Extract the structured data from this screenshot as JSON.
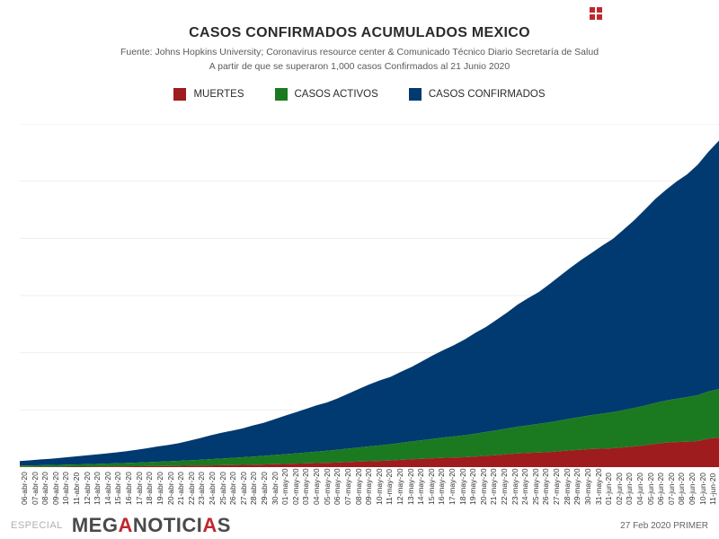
{
  "chart": {
    "type": "stacked-area",
    "title": "CASOS CONFIRMADOS ACUMULADOS MEXICO",
    "subtitle1": "Fuente: Johns Hopkins University; Coronavirus resource center & Comunicado Técnico Diario Secretaría de Salud",
    "subtitle2": "A partir de que se superaron 1,000 casos Confirmados al 21 Junio 2020",
    "title_fontsize": 16,
    "subtitle_fontsize": 10.5,
    "legend_fontsize": 11.5,
    "xaxis_fontsize": 8.5,
    "background_color": "#ffffff",
    "grid_color": "#eeeeee",
    "ylim": [
      0,
      185000
    ],
    "grid_steps": 6,
    "legend": [
      {
        "label": "MUERTES",
        "color": "#9e1b1e"
      },
      {
        "label": "CASOS ACTIVOS",
        "color": "#1b7a1f"
      },
      {
        "label": "CASOS CONFIRMADOS",
        "color": "#003a70"
      }
    ],
    "dates": [
      "06-abr-20",
      "07-abr-20",
      "08-abr-20",
      "09-abr-20",
      "10-abr-20",
      "11-abr-20",
      "12-abr-20",
      "13-abr-20",
      "14-abr-20",
      "15-abr-20",
      "16-abr-20",
      "17-abr-20",
      "18-abr-20",
      "19-abr-20",
      "20-abr-20",
      "21-abr-20",
      "22-abr-20",
      "23-abr-20",
      "24-abr-20",
      "25-abr-20",
      "26-abr-20",
      "27-abr-20",
      "28-abr-20",
      "29-abr-20",
      "30-abr-20",
      "01-may-20",
      "02-may-20",
      "03-may-20",
      "04-may-20",
      "05-may-20",
      "06-may-20",
      "07-may-20",
      "08-may-20",
      "09-may-20",
      "10-may-20",
      "11-may-20",
      "12-may-20",
      "13-may-20",
      "14-may-20",
      "15-may-20",
      "16-may-20",
      "17-may-20",
      "18-may-20",
      "19-may-20",
      "20-may-20",
      "21-may-20",
      "22-may-20",
      "23-may-20",
      "24-may-20",
      "25-may-20",
      "26-may-20",
      "27-may-20",
      "28-may-20",
      "29-may-20",
      "30-may-20",
      "31-may-20",
      "01-jun-20",
      "02-jun-20",
      "03-jun-20",
      "04-jun-20",
      "05-jun-20",
      "06-jun-20",
      "07-jun-20",
      "08-jun-20",
      "09-jun-20",
      "10-jun-20",
      "11-jun-20"
    ],
    "series": {
      "muertes": [
        120,
        140,
        160,
        180,
        210,
        240,
        270,
        300,
        340,
        380,
        420,
        470,
        520,
        570,
        630,
        690,
        760,
        830,
        910,
        1000,
        1100,
        1200,
        1300,
        1420,
        1560,
        1700,
        1850,
        2000,
        2150,
        2310,
        2510,
        2700,
        2960,
        3160,
        3350,
        3570,
        3930,
        4220,
        4480,
        4770,
        5050,
        5180,
        5330,
        5670,
        6090,
        6500,
        6990,
        7390,
        7630,
        7890,
        8130,
        8600,
        9040,
        9410,
        9780,
        9930,
        10170,
        10640,
        11130,
        11730,
        12550,
        13170,
        13510,
        13700,
        14050,
        15360,
        15940
      ],
      "activos": [
        700,
        780,
        860,
        950,
        1050,
        1150,
        1260,
        1380,
        1510,
        1650,
        1800,
        1960,
        2130,
        2310,
        2500,
        2700,
        2910,
        3130,
        3360,
        3600,
        3850,
        4110,
        4380,
        4660,
        4950,
        5250,
        5560,
        5880,
        6210,
        6550,
        6900,
        7260,
        7630,
        8010,
        8400,
        8800,
        9210,
        9630,
        10060,
        10500,
        10950,
        11410,
        11880,
        12360,
        12850,
        13350,
        13860,
        14380,
        14910,
        15450,
        16000,
        16560,
        17130,
        17710,
        18300,
        18900,
        19510,
        20130,
        20760,
        21400,
        22050,
        22710,
        23380,
        24060,
        24750,
        25450,
        26160
      ],
      "confirmados": [
        2440,
        2790,
        3180,
        3440,
        3840,
        4220,
        4660,
        5010,
        5400,
        5850,
        6300,
        6880,
        7500,
        8260,
        8770,
        9500,
        10540,
        11630,
        12870,
        13840,
        14680,
        15530,
        16750,
        17800,
        19220,
        20740,
        22090,
        23470,
        24910,
        26020,
        27630,
        29620,
        31520,
        33460,
        35020,
        36330,
        38320,
        40190,
        42600,
        45030,
        47140,
        49220,
        51630,
        54350,
        56590,
        59570,
        62530,
        65860,
        68620,
        71110,
        74560,
        78020,
        81400,
        84630,
        87510,
        90660,
        93440,
        97330,
        101240,
        105680,
        110030,
        113620,
        117100,
        120100,
        124300,
        129180,
        133970
      ]
    },
    "colors": {
      "muertes": "#9e1b1e",
      "activos": "#1b7a1f",
      "confirmados": "#003a70"
    }
  },
  "footer": {
    "especial": "ESPECIAL",
    "logo_pre": "MEG",
    "logo_a1": "A",
    "logo_mid": "NOTICI",
    "logo_a2": "A",
    "logo_post": "S",
    "right_text": "27 Feb 2020 PRIMER"
  }
}
